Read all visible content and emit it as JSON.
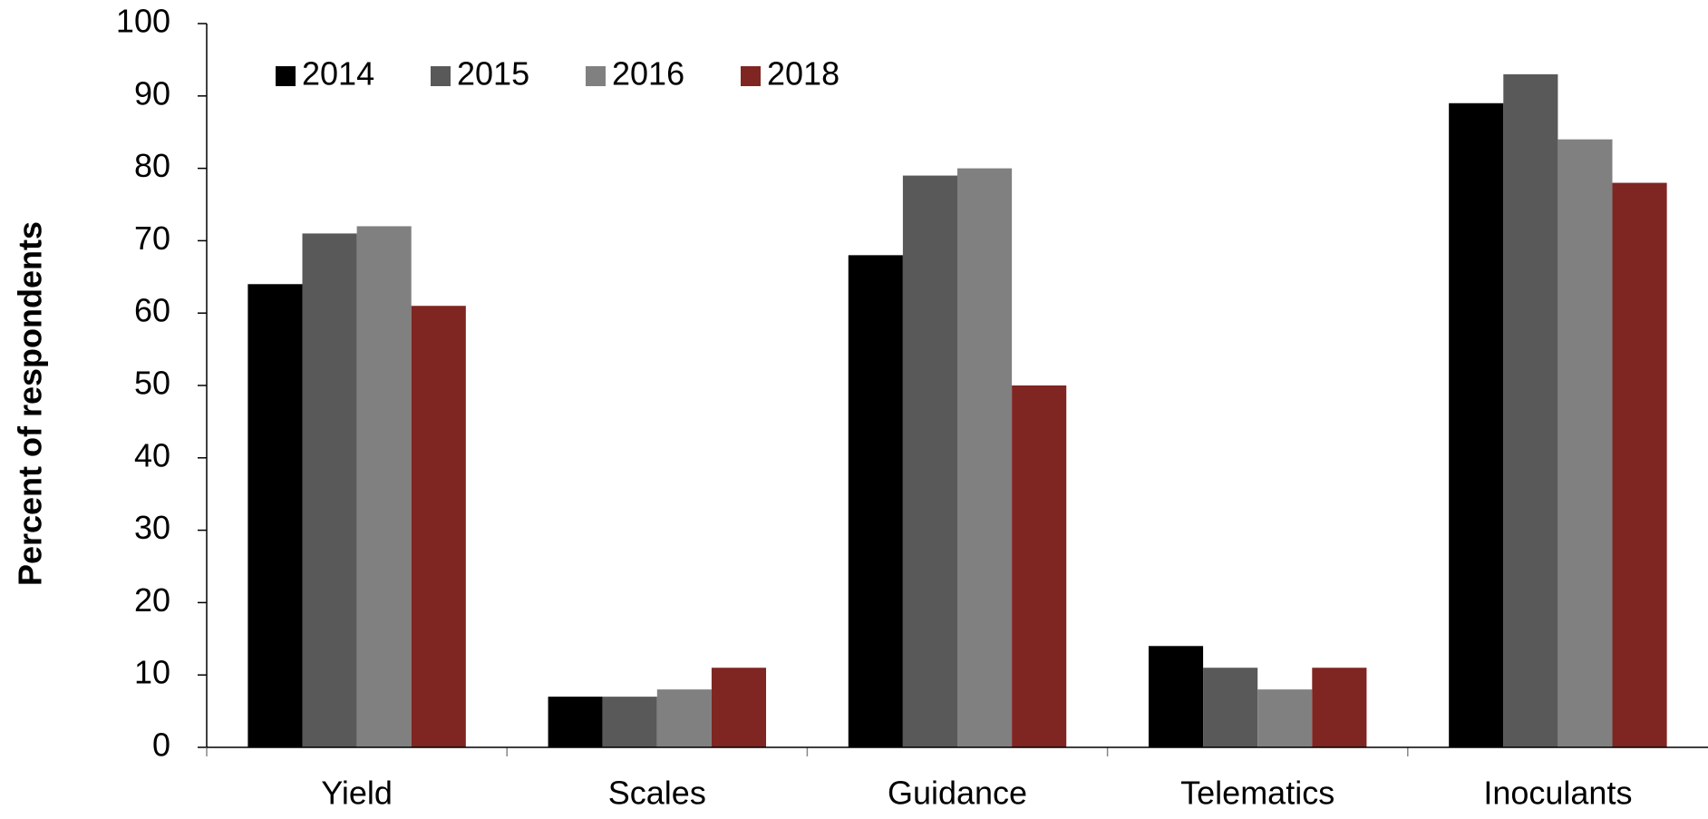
{
  "chart_data": {
    "type": "bar",
    "y_label": "Percent of respondents",
    "categories": [
      "Yield",
      "Scales",
      "Guidance",
      "Telematics",
      "Inoculants"
    ],
    "series": [
      {
        "name": "2014",
        "color": "#000000",
        "values": [
          64,
          7,
          68,
          14,
          89
        ]
      },
      {
        "name": "2015",
        "color": "#595959",
        "values": [
          71,
          7,
          79,
          11,
          93
        ]
      },
      {
        "name": "2016",
        "color": "#808080",
        "values": [
          72,
          8,
          80,
          8,
          84
        ]
      },
      {
        "name": "2018",
        "color": "#7f2622",
        "values": [
          61,
          11,
          50,
          11,
          78
        ]
      }
    ],
    "ylim": [
      0,
      100
    ],
    "yticks": [
      0,
      10,
      20,
      30,
      40,
      50,
      60,
      70,
      80,
      90,
      100
    ],
    "grid": false,
    "legend": "top-left"
  }
}
